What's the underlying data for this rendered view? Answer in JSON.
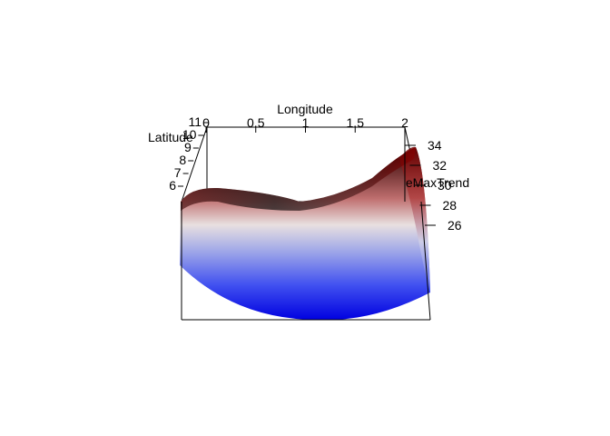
{
  "chart_data": {
    "type": "surface",
    "x_axis": {
      "label": "Longitude",
      "ticks": [
        "0",
        "0.5",
        "1",
        "1.5",
        "2"
      ],
      "range": [
        0,
        2
      ]
    },
    "y_axis": {
      "label": "Latitude",
      "ticks": [
        "6",
        "7",
        "8",
        "9",
        "10",
        "11"
      ],
      "range": [
        6,
        11
      ]
    },
    "z_axis": {
      "label": "SpatialTempMaxTrend",
      "visible_label": "eMaxTrend",
      "ticks": [
        "26",
        "28",
        "30",
        "32",
        "34"
      ],
      "range": [
        24,
        35
      ]
    },
    "colormap": [
      "#0000e6",
      "#ffffff",
      "#6e0000"
    ],
    "surface": {
      "description_values": {
        "front_left_corner": 29,
        "front_center": 24,
        "front_right_corner": 29,
        "back_left_corner": 31,
        "back_center": 28,
        "back_right_corner": 34
      }
    }
  }
}
